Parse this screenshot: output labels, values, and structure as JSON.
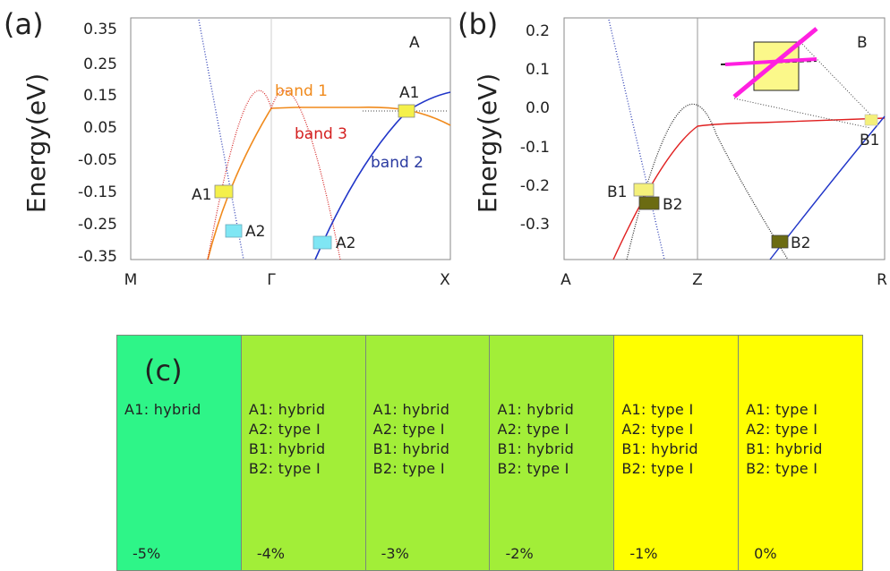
{
  "panels": [
    {
      "id": "a",
      "panel_label": "(a)",
      "corner_label": "A",
      "ylabel": "Energy(eV)",
      "y_ticks": [
        "0.35",
        "0.25",
        "0.15",
        "0.05",
        "-0.05",
        "-0.15",
        "-0.25",
        "-0.35"
      ],
      "x_ticks": [
        "M",
        "Γ",
        "X"
      ],
      "band_labels": [
        {
          "text": "band 1",
          "color": "#f08a1c"
        },
        {
          "text": "band 3",
          "color": "#d42020"
        },
        {
          "text": "band 2",
          "color": "#2a3aa0"
        }
      ],
      "markers": [
        {
          "label": "A1",
          "color": "#f4f04a"
        },
        {
          "label": "A1",
          "color": "#f4f04a"
        },
        {
          "label": "A2",
          "color": "#7fe6f4"
        },
        {
          "label": "A2",
          "color": "#7fe6f4"
        }
      ]
    },
    {
      "id": "b",
      "panel_label": "(b)",
      "corner_label": "B",
      "ylabel": "Energy(eV)",
      "y_ticks": [
        "0.2",
        "0.1",
        "0.0",
        "-0.1",
        "-0.2",
        "-0.3"
      ],
      "x_ticks": [
        "A",
        "Z",
        "R"
      ],
      "markers": [
        {
          "label": "B1",
          "color": "#f4f07a"
        },
        {
          "label": "B2",
          "color": "#6b6b12"
        },
        {
          "label": "B2",
          "color": "#6b6b12"
        },
        {
          "label": "B1",
          "color": "#f4f07a"
        }
      ]
    }
  ],
  "chart_data": [
    {
      "type": "line",
      "panel": "(a)",
      "xlabel": "",
      "ylabel": "Energy(eV)",
      "x_ticks": [
        "M",
        "Γ",
        "X"
      ],
      "ylim": [
        -0.37,
        0.37
      ],
      "series": [
        {
          "name": "band 1",
          "color": "#f08a1c",
          "style": "solid",
          "x": [
            0.25,
            0.3,
            0.38,
            0.46,
            0.5,
            0.6,
            0.7,
            0.8,
            0.9,
            1.0
          ],
          "y": [
            -0.37,
            -0.28,
            -0.12,
            0.05,
            0.1,
            0.104,
            0.106,
            0.107,
            0.094,
            0.09
          ]
        },
        {
          "name": "band 3",
          "color": "#d42020",
          "style": "dotted",
          "x": [
            0.25,
            0.3,
            0.38,
            0.46,
            0.5,
            0.54,
            0.62,
            0.7,
            0.75
          ],
          "y": [
            -0.37,
            -0.28,
            -0.12,
            0.05,
            0.1,
            0.05,
            -0.12,
            -0.28,
            -0.37
          ]
        },
        {
          "name": "band 2",
          "color": "#2a3aa0",
          "style": "solid",
          "x": [
            0.67,
            0.7,
            0.75,
            0.8,
            0.85,
            0.9,
            0.95,
            1.0
          ],
          "y": [
            -0.37,
            -0.31,
            -0.22,
            -0.14,
            -0.07,
            -0.005,
            0.07,
            0.12
          ]
        },
        {
          "name": "",
          "color": "#3a4ab8",
          "style": "dotted",
          "x": [
            0.03,
            0.12,
            0.2,
            0.29,
            0.38
          ],
          "y": [
            0.37,
            0.2,
            0.0,
            -0.2,
            -0.37
          ]
        }
      ],
      "points": [
        {
          "label": "A1",
          "x": 0.92,
          "y": 0.09
        },
        {
          "label": "A1",
          "x": 0.38,
          "y": -0.165
        },
        {
          "label": "A2",
          "x": 0.41,
          "y": -0.275
        },
        {
          "label": "A2",
          "x": 0.71,
          "y": -0.31
        }
      ]
    },
    {
      "type": "line",
      "panel": "(b)",
      "xlabel": "",
      "ylabel": "Energy(eV)",
      "x_ticks": [
        "A",
        "Z",
        "R"
      ],
      "ylim": [
        -0.39,
        0.22
      ],
      "series": [
        {
          "name": "",
          "color": "#d42020",
          "style": "solid",
          "x": [
            0.0,
            0.12,
            0.24,
            0.36,
            0.48,
            0.6,
            0.8,
            1.0
          ],
          "y": [
            -0.39,
            -0.3,
            -0.22,
            -0.15,
            -0.06,
            -0.048,
            -0.038,
            -0.03
          ]
        },
        {
          "name": "",
          "color": "#222222",
          "style": "dotted",
          "x": [
            0.1,
            0.2,
            0.3,
            0.4,
            0.5,
            0.6,
            0.7,
            0.85
          ],
          "y": [
            -0.39,
            -0.3,
            -0.2,
            -0.1,
            -0.05,
            -0.1,
            -0.2,
            -0.39
          ]
        },
        {
          "name": "",
          "color": "#2a3aa0",
          "style": "solid",
          "x": [
            0.64,
            0.75,
            0.85,
            0.95,
            1.0
          ],
          "y": [
            -0.39,
            -0.3,
            -0.2,
            -0.08,
            -0.03
          ]
        },
        {
          "name": "",
          "color": "#3a4ab8",
          "style": "dotted",
          "x": [
            0.14,
            0.2,
            0.26,
            0.33
          ],
          "y": [
            0.22,
            0.0,
            -0.22,
            -0.39
          ]
        }
      ],
      "points": [
        {
          "label": "B1",
          "x": 0.21,
          "y": -0.215
        },
        {
          "label": "B2",
          "x": 0.23,
          "y": -0.245
        },
        {
          "label": "B2",
          "x": 0.63,
          "y": -0.35
        },
        {
          "label": "B1",
          "x": 0.96,
          "y": -0.032
        }
      ]
    }
  ],
  "table": {
    "label": "(c)",
    "columns": [
      {
        "color": "#2ef588",
        "lines": [
          "A1: hybrid"
        ],
        "strain": "-5%"
      },
      {
        "color": "#a2ee38",
        "lines": [
          "A1: hybrid",
          "A2: type I",
          "B1: hybrid",
          "B2: type I"
        ],
        "strain": "-4%"
      },
      {
        "color": "#a2ee38",
        "lines": [
          "A1: hybrid",
          "A2: type I",
          "B1: hybrid",
          "B2: type I"
        ],
        "strain": "-3%"
      },
      {
        "color": "#a2ee38",
        "lines": [
          "A1: hybrid",
          "A2: type I",
          "B1: hybrid",
          "B2: type I"
        ],
        "strain": "-2%"
      },
      {
        "color": "#ffff00",
        "lines": [
          "A1: type I",
          "A2: type I",
          "B1: hybrid",
          "B2: type I"
        ],
        "strain": "-1%"
      },
      {
        "color": "#ffff00",
        "lines": [
          "A1: type I",
          "A2: type I",
          "B1: hybrid",
          "B2: type I"
        ],
        "strain": "0%"
      }
    ]
  }
}
